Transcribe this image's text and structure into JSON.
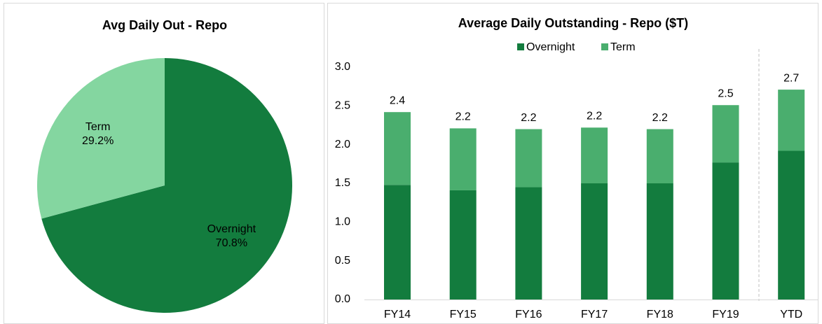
{
  "chart_data": [
    {
      "type": "pie",
      "title": "Avg Daily Out - Repo",
      "categories": [
        "Overnight",
        "Term"
      ],
      "values": [
        70.8,
        29.2
      ],
      "value_labels": [
        "70.8%",
        "29.2%"
      ],
      "colors": [
        "#137c3e",
        "#84d6a0"
      ]
    },
    {
      "type": "stacked_bar",
      "title": "Average Daily Outstanding - Repo ($T)",
      "categories": [
        "FY14",
        "FY15",
        "FY16",
        "FY17",
        "FY18",
        "FY19",
        "YTD"
      ],
      "series": [
        {
          "name": "Overnight",
          "color": "#137c3e",
          "values": [
            1.48,
            1.41,
            1.45,
            1.5,
            1.5,
            1.77,
            1.92
          ]
        },
        {
          "name": "Term",
          "color": "#4aae6e",
          "values": [
            0.94,
            0.8,
            0.75,
            0.72,
            0.7,
            0.74,
            0.79
          ]
        }
      ],
      "totals": [
        2.4,
        2.2,
        2.2,
        2.2,
        2.2,
        2.5,
        2.7
      ],
      "ylim": [
        0,
        3
      ],
      "yticks": [
        {
          "value": 0,
          "label": "0.0"
        },
        0.5,
        {
          "value": 1,
          "label": "1.0"
        },
        1.5,
        {
          "value": 2,
          "label": "2.0"
        },
        2.5,
        {
          "value": 3,
          "label": "3.0"
        }
      ],
      "legend": "top"
    }
  ]
}
